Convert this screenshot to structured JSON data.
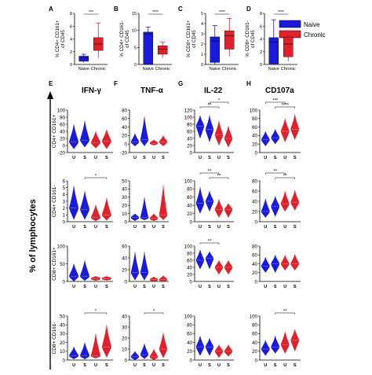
{
  "figure": {
    "y_axis_label": "% of lymphocytes",
    "legend": [
      {
        "label": "Naive",
        "color": "#1a1adc"
      },
      {
        "label": "Chronic",
        "color": "#e0202a"
      }
    ],
    "group_colors": {
      "naive": "#1a1adc",
      "chronic": "#e0202a"
    },
    "column_headers": [
      {
        "letter": "E",
        "title": "IFN-γ"
      },
      {
        "letter": "F",
        "title": "TNF-α"
      },
      {
        "letter": "G",
        "title": "IL-22"
      },
      {
        "letter": "H",
        "title": "CD107a"
      }
    ],
    "row_labels": [
      "CD4+ CD161+",
      "CD4+ CD161-",
      "CD8+ CD161+",
      "CD8+ CD161-"
    ],
    "violin_x_labels": [
      "U",
      "S",
      "U",
      "S"
    ],
    "box_x_labels": [
      "Naive",
      "Chronic"
    ]
  },
  "chart_data": [
    {
      "type": "bar",
      "panel": "A",
      "ylabel": "% CD4+ CD161+ of CD45",
      "categories": [
        "Naive",
        "Chronic"
      ],
      "values": [
        1,
        3.2
      ],
      "lower": [
        0.5,
        2.2
      ],
      "upper": [
        1.3,
        4.2
      ],
      "whisker_low": [
        0.3,
        1
      ],
      "whisker_high": [
        1.6,
        6.5
      ],
      "ylim": [
        0,
        8
      ],
      "yticks": [
        0,
        2,
        4,
        6,
        8
      ],
      "sig": "***"
    },
    {
      "type": "bar",
      "panel": "B",
      "ylabel": "% CD4+ CD161- of CD45",
      "categories": [
        "Naive",
        "Chronic"
      ],
      "values": [
        9,
        4.5
      ],
      "lower": [
        0,
        3
      ],
      "upper": [
        9.5,
        5.5
      ],
      "whisker_low": [
        0,
        2
      ],
      "whisker_high": [
        11,
        6.5
      ],
      "ylim": [
        0,
        15
      ],
      "yticks": [
        0,
        5,
        10,
        15
      ],
      "sig": "****"
    },
    {
      "type": "bar",
      "panel": "C",
      "ylabel": "% CD8+ CD161+ of CD45",
      "categories": [
        "Naive",
        "Chronic"
      ],
      "values": [
        2.3,
        2.8
      ],
      "lower": [
        0.2,
        1.5
      ],
      "upper": [
        2.7,
        3.3
      ],
      "whisker_low": [
        0,
        0.8
      ],
      "whisker_high": [
        3.8,
        4.5
      ],
      "ylim": [
        0,
        5
      ],
      "yticks": [
        0,
        1,
        2,
        3,
        4,
        5
      ],
      "sig": "****"
    },
    {
      "type": "bar",
      "panel": "D",
      "ylabel": "% CD8+ CD161- of CD45",
      "categories": [
        "Naive",
        "Chronic"
      ],
      "values": [
        3.5,
        3.2
      ],
      "lower": [
        0.1,
        1.2
      ],
      "upper": [
        4.2,
        4.3
      ],
      "whisker_low": [
        0,
        0.5
      ],
      "whisker_high": [
        7,
        5.3
      ],
      "ylim": [
        0,
        8
      ],
      "yticks": [
        0,
        2,
        4,
        6,
        8
      ],
      "sig": "****"
    },
    {
      "type": "violin",
      "panel": "E1",
      "ylim": [
        -20,
        100
      ],
      "yticks": [
        -20,
        0,
        20,
        40,
        60,
        80,
        100
      ],
      "x_labels": [
        "U",
        "S",
        "U",
        "S"
      ],
      "medians": [
        10,
        15,
        8,
        12
      ],
      "low": [
        -10,
        -5,
        -8,
        -10
      ],
      "high": [
        60,
        70,
        40,
        45
      ],
      "sig": []
    },
    {
      "type": "violin",
      "panel": "F1",
      "ylim": [
        -20,
        80
      ],
      "yticks": [
        -20,
        0,
        20,
        40,
        60,
        80
      ],
      "x_labels": [
        "U",
        "S",
        "U",
        "S"
      ],
      "medians": [
        5,
        10,
        2,
        5
      ],
      "low": [
        -5,
        -5,
        -3,
        -5
      ],
      "high": [
        25,
        65,
        10,
        20
      ],
      "sig": []
    },
    {
      "type": "violin",
      "panel": "G1",
      "ylim": [
        0,
        120
      ],
      "yticks": [
        0,
        20,
        40,
        60,
        80,
        100,
        120
      ],
      "x_labels": [
        "U",
        "S",
        "U",
        "S"
      ],
      "medians": [
        75,
        65,
        50,
        40
      ],
      "low": [
        40,
        30,
        20,
        15
      ],
      "high": [
        105,
        105,
        90,
        75
      ],
      "sig": [
        {
          "from": 0,
          "to": 2,
          "label": "**",
          "level": 0
        },
        {
          "from": 1,
          "to": 3,
          "label": "*",
          "level": 1
        }
      ]
    },
    {
      "type": "violin",
      "panel": "H1",
      "ylim": [
        0,
        100
      ],
      "yticks": [
        0,
        20,
        40,
        60,
        80,
        100
      ],
      "x_labels": [
        "U",
        "S",
        "U",
        "S"
      ],
      "medians": [
        30,
        35,
        50,
        55
      ],
      "low": [
        15,
        20,
        25,
        30
      ],
      "high": [
        50,
        55,
        80,
        90
      ],
      "sig": [
        {
          "from": 1,
          "to": 3,
          "label": "****",
          "level": 0
        },
        {
          "from": 0,
          "to": 2,
          "label": "***",
          "level": 1
        }
      ]
    },
    {
      "type": "violin",
      "panel": "E2",
      "ylim": [
        0,
        6
      ],
      "yticks": [
        0,
        1,
        2,
        3,
        4,
        5,
        6
      ],
      "x_labels": [
        "U",
        "S",
        "U",
        "S"
      ],
      "medians": [
        2,
        1.8,
        0.6,
        1
      ],
      "low": [
        0.3,
        0.3,
        0.1,
        0.2
      ],
      "high": [
        5.3,
        4.5,
        2.5,
        3.5
      ],
      "sig": [
        {
          "from": 1,
          "to": 3,
          "label": "*",
          "level": 0
        }
      ]
    },
    {
      "type": "violin",
      "panel": "F2",
      "ylim": [
        0,
        50
      ],
      "yticks": [
        0,
        10,
        20,
        30,
        40,
        50
      ],
      "x_labels": [
        "U",
        "S",
        "U",
        "S"
      ],
      "medians": [
        5,
        5,
        4,
        8
      ],
      "low": [
        1,
        2,
        1,
        2
      ],
      "high": [
        10,
        30,
        10,
        45
      ],
      "sig": []
    },
    {
      "type": "violin",
      "panel": "G2",
      "ylim": [
        0,
        100
      ],
      "yticks": [
        0,
        20,
        40,
        60,
        80,
        100
      ],
      "x_labels": [
        "U",
        "S",
        "U",
        "S"
      ],
      "medians": [
        45,
        50,
        30,
        30
      ],
      "low": [
        20,
        25,
        10,
        10
      ],
      "high": [
        85,
        75,
        55,
        45
      ],
      "sig": [
        {
          "from": 0,
          "to": 2,
          "label": "**",
          "level": 1
        },
        {
          "from": 1,
          "to": 3,
          "label": "**",
          "level": 0
        }
      ]
    },
    {
      "type": "violin",
      "panel": "H2",
      "ylim": [
        0,
        80
      ],
      "yticks": [
        0,
        20,
        40,
        60,
        80
      ],
      "x_labels": [
        "U",
        "S",
        "U",
        "S"
      ],
      "medians": [
        20,
        30,
        35,
        38
      ],
      "low": [
        8,
        10,
        20,
        22
      ],
      "high": [
        45,
        50,
        60,
        62
      ],
      "sig": [
        {
          "from": 0,
          "to": 2,
          "label": "**",
          "level": 1
        },
        {
          "from": 1,
          "to": 3,
          "label": "**",
          "level": 0
        }
      ]
    },
    {
      "type": "violin",
      "panel": "E3",
      "ylim": [
        0,
        100
      ],
      "yticks": [
        0,
        50,
        100
      ],
      "x_labels": [
        "U",
        "S",
        "U",
        "S"
      ],
      "medians": [
        15,
        15,
        8,
        8
      ],
      "low": [
        0,
        2,
        2,
        3
      ],
      "high": [
        50,
        60,
        15,
        15
      ],
      "sig": []
    },
    {
      "type": "violin",
      "panel": "F3",
      "ylim": [
        0,
        60
      ],
      "yticks": [
        0,
        20,
        40,
        60
      ],
      "x_labels": [
        "U",
        "S",
        "U",
        "S"
      ],
      "medians": [
        15,
        15,
        3,
        3
      ],
      "low": [
        2,
        2,
        0,
        0
      ],
      "high": [
        50,
        50,
        8,
        10
      ],
      "sig": []
    },
    {
      "type": "violin",
      "panel": "G3",
      "ylim": [
        0,
        100
      ],
      "yticks": [
        0,
        20,
        40,
        60,
        80,
        100
      ],
      "x_labels": [
        "U",
        "S",
        "U",
        "S"
      ],
      "medians": [
        60,
        65,
        40,
        40
      ],
      "low": [
        35,
        35,
        20,
        20
      ],
      "high": [
        90,
        85,
        60,
        60
      ],
      "sig": [
        {
          "from": 0,
          "to": 2,
          "label": "**",
          "level": 0
        }
      ]
    },
    {
      "type": "violin",
      "panel": "H3",
      "ylim": [
        0,
        80
      ],
      "yticks": [
        0,
        20,
        40,
        60,
        80
      ],
      "x_labels": [
        "U",
        "S",
        "U",
        "S"
      ],
      "medians": [
        35,
        40,
        40,
        40
      ],
      "low": [
        20,
        20,
        25,
        25
      ],
      "high": [
        55,
        60,
        60,
        62
      ],
      "sig": []
    },
    {
      "type": "violin",
      "panel": "E4",
      "ylim": [
        0,
        50
      ],
      "yticks": [
        0,
        10,
        20,
        30,
        40,
        50
      ],
      "x_labels": [
        "U",
        "S",
        "U",
        "S"
      ],
      "medians": [
        5,
        5,
        5,
        15
      ],
      "low": [
        1,
        1,
        2,
        3
      ],
      "high": [
        15,
        20,
        30,
        40
      ],
      "sig": [
        {
          "from": 1,
          "to": 3,
          "label": "*",
          "level": 0
        }
      ]
    },
    {
      "type": "violin",
      "panel": "F4",
      "ylim": [
        0,
        40
      ],
      "yticks": [
        0,
        10,
        20,
        30,
        40
      ],
      "x_labels": [
        "U",
        "S",
        "U",
        "S"
      ],
      "medians": [
        3,
        5,
        3,
        10
      ],
      "low": [
        0,
        1,
        0,
        2
      ],
      "high": [
        8,
        15,
        10,
        25
      ],
      "sig": [
        {
          "from": 1,
          "to": 3,
          "label": "*",
          "level": 0
        }
      ]
    },
    {
      "type": "violin",
      "panel": "G4",
      "ylim": [
        0,
        100
      ],
      "yticks": [
        0,
        20,
        40,
        60,
        80,
        100
      ],
      "x_labels": [
        "U",
        "S",
        "U",
        "S"
      ],
      "medians": [
        30,
        30,
        20,
        20
      ],
      "low": [
        10,
        10,
        5,
        8
      ],
      "high": [
        55,
        50,
        35,
        35
      ],
      "sig": []
    },
    {
      "type": "violin",
      "panel": "H4",
      "ylim": [
        0,
        100
      ],
      "yticks": [
        0,
        20,
        40,
        60,
        80,
        100
      ],
      "x_labels": [
        "U",
        "S",
        "U",
        "S"
      ],
      "medians": [
        25,
        30,
        35,
        45
      ],
      "low": [
        10,
        15,
        15,
        20
      ],
      "high": [
        45,
        55,
        65,
        70
      ],
      "sig": [
        {
          "from": 1,
          "to": 3,
          "label": "**",
          "level": 0
        }
      ]
    }
  ]
}
